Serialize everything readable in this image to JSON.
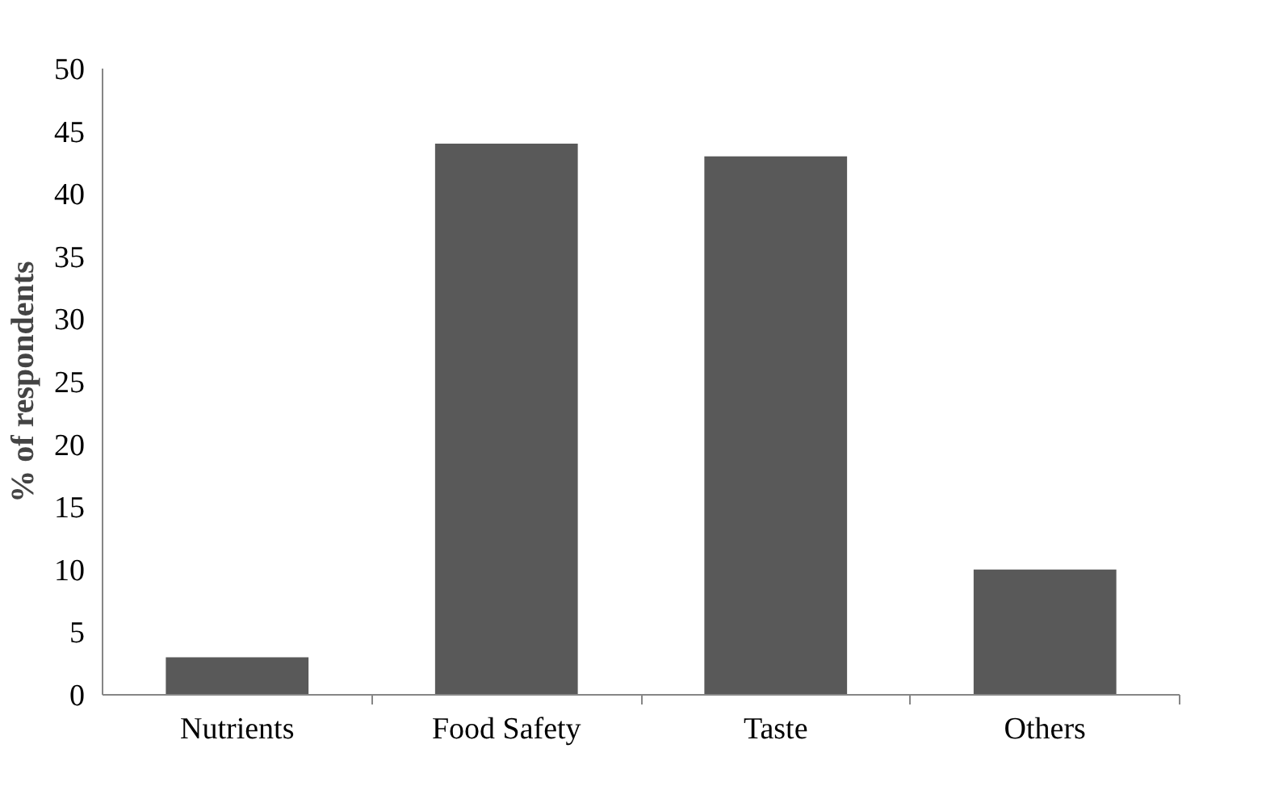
{
  "chart_data": {
    "type": "bar",
    "ylabel": "% of respondents",
    "categories": [
      "Nutrients",
      "Food Safety",
      "Taste",
      "Others"
    ],
    "values": [
      3,
      44,
      43,
      10
    ],
    "color": "#595959",
    "ylim": [
      0,
      50
    ],
    "yticks": [
      0,
      5,
      10,
      15,
      20,
      25,
      30,
      35,
      40,
      45,
      50
    ],
    "grid": false,
    "legend": false
  }
}
